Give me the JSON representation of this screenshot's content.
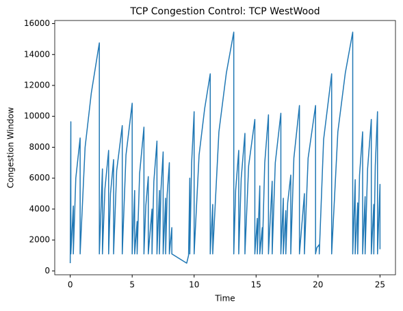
{
  "chart_data": {
    "type": "line",
    "title": "TCP Congestion Control: TCP WestWood",
    "xlabel": "Time",
    "ylabel": "Congestion Window",
    "xlim": [
      -1.25,
      26.25
    ],
    "xticks": [
      0,
      5,
      10,
      15,
      20,
      25
    ],
    "ylim": [
      -250,
      16200
    ],
    "yticks": [
      0,
      2000,
      4000,
      6000,
      8000,
      10000,
      12000,
      14000,
      16000
    ],
    "grid": false,
    "x": [
      0,
      0.05,
      0.05,
      0.25,
      0.25,
      0.45,
      0.8,
      0.8,
      1.2,
      1.7,
      2.35,
      2.35,
      2.6,
      2.6,
      2.8,
      3.1,
      3.1,
      3.25,
      3.5,
      3.5,
      3.75,
      4.2,
      4.2,
      4.5,
      5.0,
      5.0,
      5.2,
      5.2,
      5.4,
      5.4,
      5.6,
      5.95,
      5.95,
      6.1,
      6.3,
      6.3,
      6.6,
      6.6,
      6.75,
      7.0,
      7.0,
      7.2,
      7.2,
      7.32,
      7.5,
      7.5,
      7.7,
      7.7,
      7.82,
      8.0,
      8.0,
      8.2,
      8.2,
      9.4,
      9.55,
      9.65,
      9.65,
      9.8,
      10.0,
      10.0,
      10.4,
      10.85,
      11.3,
      11.3,
      11.5,
      11.5,
      12.0,
      12.6,
      13.2,
      13.2,
      13.35,
      13.6,
      13.6,
      13.8,
      14.1,
      14.1,
      14.4,
      14.9,
      14.9,
      15.1,
      15.1,
      15.3,
      15.3,
      15.5,
      15.5,
      15.7,
      16.0,
      16.0,
      16.3,
      16.3,
      16.55,
      17.0,
      17.0,
      17.2,
      17.2,
      17.4,
      17.4,
      17.55,
      17.8,
      17.8,
      18.05,
      18.5,
      18.5,
      18.9,
      18.9,
      19.2,
      19.8,
      19.8,
      19.9,
      20.1,
      20.1,
      20.45,
      21.1,
      21.1,
      21.6,
      22.2,
      22.8,
      22.8,
      23.0,
      23.0,
      23.2,
      23.2,
      23.35,
      23.6,
      23.6,
      23.8,
      23.8,
      24.0,
      24.3,
      24.3,
      24.5,
      24.5,
      24.62,
      24.8,
      24.8,
      25.0,
      25.0
    ],
    "series": [
      {
        "name": "Congestion Window",
        "color": "#1f77b4",
        "values": [
          500,
          9650,
          1100,
          4200,
          1100,
          6000,
          8600,
          1100,
          8000,
          11500,
          14750,
          1100,
          6600,
          1100,
          5300,
          7800,
          1100,
          5000,
          7200,
          1100,
          6500,
          9400,
          1100,
          7500,
          10850,
          1100,
          5200,
          1100,
          3200,
          1100,
          6300,
          9300,
          1100,
          4200,
          6100,
          1100,
          4000,
          1100,
          5800,
          8400,
          1100,
          5200,
          1100,
          5200,
          7700,
          1100,
          4700,
          1100,
          4900,
          7000,
          1100,
          2800,
          1100,
          500,
          1000,
          6000,
          1100,
          7000,
          10300,
          1100,
          7500,
          10500,
          12750,
          1100,
          4300,
          1100,
          9000,
          12800,
          15450,
          1100,
          5200,
          7800,
          1100,
          6000,
          8900,
          1100,
          6800,
          9800,
          1100,
          3400,
          1100,
          5500,
          1100,
          2800,
          1100,
          7000,
          10100,
          1100,
          5800,
          1100,
          7000,
          10200,
          1100,
          4700,
          1100,
          3900,
          1100,
          4400,
          6200,
          1100,
          7300,
          10700,
          1100,
          5000,
          1100,
          7300,
          10700,
          1100,
          1500,
          1700,
          1100,
          8500,
          12750,
          1100,
          9000,
          12800,
          15450,
          1100,
          5900,
          1100,
          4400,
          1100,
          6200,
          9000,
          1100,
          4800,
          1100,
          6600,
          9800,
          1100,
          4300,
          1100,
          6800,
          10300,
          1100,
          5600,
          1400
        ]
      }
    ]
  }
}
